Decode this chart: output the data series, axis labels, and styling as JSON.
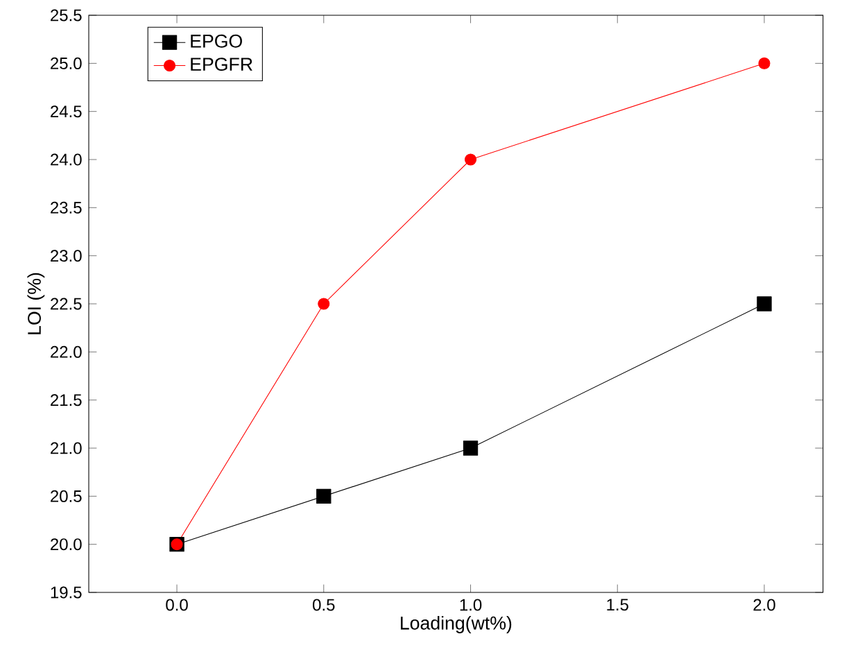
{
  "chart_data": {
    "type": "line",
    "xlabel": "Loading(wt%)",
    "ylabel": "LOI (%)",
    "xlim": [
      -0.3,
      2.2
    ],
    "ylim": [
      19.5,
      25.5
    ],
    "xticks": [
      {
        "value": 0,
        "label": "0.0"
      },
      {
        "value": 0.5,
        "label": "0.5"
      },
      {
        "value": 1,
        "label": "1.0"
      },
      {
        "value": 1.5,
        "label": "1.5"
      },
      {
        "value": 2,
        "label": "2.0"
      }
    ],
    "yticks": [
      {
        "value": 19.5,
        "label": "19.5"
      },
      {
        "value": 20,
        "label": "20.0"
      },
      {
        "value": 20.5,
        "label": "20.5"
      },
      {
        "value": 21,
        "label": "21.0"
      },
      {
        "value": 21.5,
        "label": "21.5"
      },
      {
        "value": 22,
        "label": "22.0"
      },
      {
        "value": 22.5,
        "label": "22.5"
      },
      {
        "value": 23,
        "label": "23.0"
      },
      {
        "value": 23.5,
        "label": "23.5"
      },
      {
        "value": 24,
        "label": "24.0"
      },
      {
        "value": 24.5,
        "label": "24.5"
      },
      {
        "value": 25,
        "label": "25.0"
      },
      {
        "value": 25.5,
        "label": "25.5"
      }
    ],
    "x": [
      0,
      0.5,
      1,
      2
    ],
    "legend": "top left",
    "grid": false,
    "series": [
      {
        "name": "EPGO",
        "color": "#000000",
        "marker": "square",
        "values": [
          20,
          20.5,
          21,
          22.5
        ]
      },
      {
        "name": "EPGFR",
        "color": "#ff0000",
        "marker": "circle",
        "values": [
          20,
          22.5,
          24,
          25
        ]
      }
    ]
  }
}
